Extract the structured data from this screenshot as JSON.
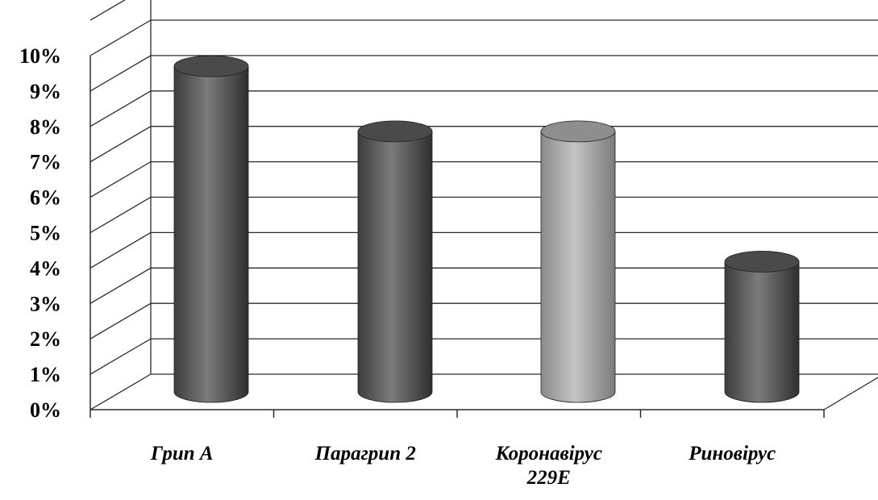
{
  "chart_data": {
    "type": "bar",
    "style": "3d-cylinder",
    "categories": [
      "Грип А",
      "Парагрип 2",
      "Коронавірус 229Е",
      "Риновірус"
    ],
    "category_lines": [
      [
        "Грип А"
      ],
      [
        "Парагрип 2"
      ],
      [
        "Коронавірус",
        "229Е"
      ],
      [
        "Риновірус"
      ]
    ],
    "values": [
      10,
      8,
      8,
      4
    ],
    "ylim": [
      0,
      10
    ],
    "yticks": [
      "0%",
      "1%",
      "2%",
      "3%",
      "4%",
      "5%",
      "6%",
      "7%",
      "8%",
      "9%",
      "10%"
    ],
    "grid": true,
    "legend": false,
    "title": "",
    "xlabel": "",
    "ylabel": "",
    "bar_colors": [
      "#6a6a6a",
      "#6a6a6a",
      "#b0b0b0",
      "#6a6a6a"
    ]
  }
}
